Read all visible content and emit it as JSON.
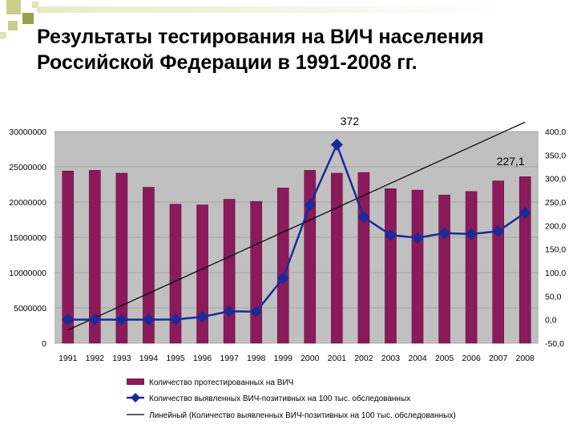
{
  "slide": {
    "title_line1": "Результаты тестирования на ВИЧ населения",
    "title_line2": "Российской Федерации в 1991-2008 гг.",
    "accent_color": "#c9cf8a",
    "accent_color_dark": "#9aa04e"
  },
  "chart_data": {
    "type": "bar",
    "categories": [
      "1991",
      "1992",
      "1993",
      "1994",
      "1995",
      "1996",
      "1997",
      "1998",
      "1999",
      "2000",
      "2001",
      "2002",
      "2003",
      "2004",
      "2005",
      "2006",
      "2007",
      "2008"
    ],
    "series": [
      {
        "name": "Количество протестированных на ВИЧ",
        "type": "bar",
        "axis": "left",
        "color": "#8b1a5a",
        "values": [
          24400000,
          24500000,
          24100000,
          22100000,
          19700000,
          19600000,
          20400000,
          20100000,
          22000000,
          24500000,
          24100000,
          24200000,
          21900000,
          21700000,
          21000000,
          21500000,
          23000000,
          23600000
        ]
      },
      {
        "name": "Количество выявленных ВИЧ-позитивных на 100 тыс. обследованных",
        "type": "line",
        "axis": "right",
        "color": "#1a2a99",
        "values": [
          0,
          0,
          0,
          0,
          0.6,
          6,
          18,
          17,
          88,
          244,
          372,
          218,
          180,
          174,
          184,
          182,
          188,
          227.1
        ]
      },
      {
        "name": "Линейный (Количество выявленных ВИЧ-позитивных на 100 тыс. обследованных)",
        "type": "trendline",
        "axis": "right",
        "color": "#000000",
        "values": [
          -22,
          4,
          30,
          56,
          82,
          108,
          134,
          160,
          186,
          212,
          238,
          264,
          290,
          316,
          342,
          368,
          394,
          420
        ]
      }
    ],
    "y_left": {
      "min": 0,
      "max": 30000000,
      "ticks": [
        "0",
        "5000000",
        "10000000",
        "15000000",
        "20000000",
        "25000000",
        "30000000"
      ]
    },
    "y_right": {
      "min": -50,
      "max": 400,
      "ticks": [
        "-50,0",
        "0,0",
        "50,0",
        "100,0",
        "150,0",
        "200,0",
        "250,0",
        "300,0",
        "350,0",
        "400,0"
      ]
    },
    "annotations": [
      {
        "label": "372",
        "category": "2001"
      },
      {
        "label": "227,1",
        "category": "2008"
      }
    ],
    "plot_background": "#c0c0c0",
    "grid": true,
    "legend_position": "bottom"
  }
}
